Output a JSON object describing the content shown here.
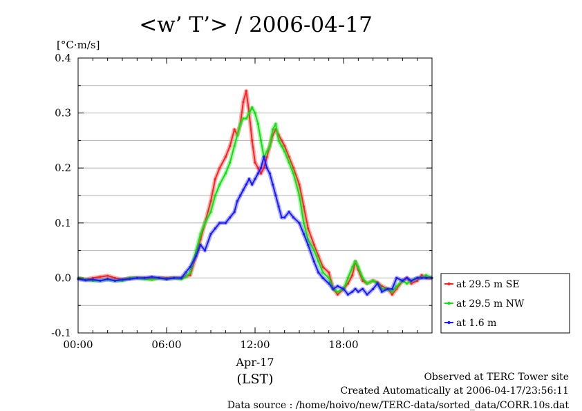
{
  "chart_data": {
    "type": "line",
    "title": "<w’ T’> / 2006-04-17",
    "ylabel": "[°C·m/s]",
    "xlabel": "(LST)",
    "date_label": "Apr-17",
    "x_unit": "hours",
    "xlim": [
      0,
      24
    ],
    "ylim": [
      -0.1,
      0.4
    ],
    "x_ticks": [
      0,
      6,
      12,
      18
    ],
    "x_tick_labels": [
      "00:00",
      "06:00",
      "12:00",
      "18:00"
    ],
    "y_ticks": [
      -0.1,
      0.0,
      0.1,
      0.2,
      0.3,
      0.4
    ],
    "y_tick_labels": [
      "-0.1",
      "0.0",
      "0.1",
      "0.2",
      "0.3",
      "0.4"
    ],
    "grid": "horizontal",
    "legend_position": "right",
    "series": [
      {
        "name": "at 29.5 m SE",
        "color": "#ff2020",
        "x": [
          0,
          0.5,
          1,
          1.5,
          2,
          2.5,
          3,
          3.5,
          4,
          4.5,
          5,
          5.5,
          6,
          6.5,
          7,
          7.3,
          7.6,
          8,
          8.3,
          8.6,
          9,
          9.3,
          9.6,
          10,
          10.3,
          10.6,
          10.8,
          11,
          11.2,
          11.4,
          11.6,
          11.8,
          12,
          12.2,
          12.4,
          12.6,
          12.8,
          13,
          13.2,
          13.4,
          13.6,
          13.8,
          14,
          14.3,
          14.6,
          15,
          15.3,
          15.6,
          16,
          16.3,
          16.6,
          17,
          17.3,
          17.6,
          18,
          18.3,
          18.6,
          18.8,
          19,
          19.3,
          19.6,
          20,
          20.3,
          20.6,
          21,
          21.3,
          21.6,
          22,
          22.3,
          22.6,
          23,
          23.3,
          23.6,
          24
        ],
        "y": [
          0.0,
          -0.003,
          0.0,
          0.002,
          0.004,
          0.0,
          -0.003,
          0.0,
          0.0,
          0.0,
          -0.002,
          0.0,
          0.0,
          0.0,
          0.0,
          0.003,
          0.005,
          0.04,
          0.07,
          0.1,
          0.14,
          0.18,
          0.2,
          0.22,
          0.24,
          0.27,
          0.26,
          0.28,
          0.32,
          0.34,
          0.3,
          0.25,
          0.21,
          0.2,
          0.19,
          0.2,
          0.22,
          0.24,
          0.26,
          0.27,
          0.26,
          0.25,
          0.24,
          0.22,
          0.2,
          0.17,
          0.13,
          0.09,
          0.06,
          0.04,
          0.02,
          0.01,
          -0.02,
          -0.03,
          -0.02,
          -0.01,
          0.005,
          0.03,
          0.015,
          -0.005,
          -0.01,
          -0.005,
          -0.008,
          -0.015,
          -0.02,
          -0.03,
          -0.02,
          -0.005,
          0.0,
          -0.01,
          -0.005,
          0.005,
          0.0,
          0.0
        ]
      },
      {
        "name": "at 29.5 m NW",
        "color": "#10e010",
        "x": [
          0,
          0.5,
          1,
          1.5,
          2,
          2.5,
          3,
          3.5,
          4,
          4.5,
          5,
          5.5,
          6,
          6.5,
          7,
          7.3,
          7.6,
          8,
          8.3,
          8.6,
          9,
          9.3,
          9.6,
          10,
          10.3,
          10.6,
          10.8,
          11,
          11.2,
          11.4,
          11.6,
          11.8,
          12,
          12.2,
          12.4,
          12.6,
          12.8,
          13,
          13.2,
          13.4,
          13.6,
          13.8,
          14,
          14.3,
          14.6,
          15,
          15.3,
          15.6,
          16,
          16.3,
          16.6,
          17,
          17.3,
          17.6,
          18,
          18.3,
          18.6,
          18.8,
          19,
          19.3,
          19.6,
          20,
          20.3,
          20.6,
          21,
          21.3,
          21.6,
          22,
          22.3,
          22.6,
          23,
          23.3,
          23.6,
          24
        ],
        "y": [
          0.0,
          -0.003,
          -0.005,
          -0.005,
          -0.003,
          -0.005,
          -0.005,
          0.0,
          0.0,
          -0.002,
          -0.003,
          0.0,
          -0.002,
          0.0,
          -0.002,
          0.002,
          0.01,
          0.05,
          0.08,
          0.1,
          0.12,
          0.15,
          0.17,
          0.19,
          0.21,
          0.24,
          0.26,
          0.28,
          0.29,
          0.29,
          0.3,
          0.31,
          0.3,
          0.28,
          0.25,
          0.22,
          0.23,
          0.24,
          0.27,
          0.28,
          0.25,
          0.24,
          0.23,
          0.21,
          0.19,
          0.15,
          0.1,
          0.07,
          0.05,
          0.03,
          0.01,
          0.0,
          -0.02,
          -0.025,
          -0.02,
          0.0,
          0.02,
          0.03,
          0.02,
          0.0,
          -0.01,
          -0.005,
          -0.01,
          -0.02,
          -0.02,
          -0.025,
          -0.015,
          -0.005,
          -0.01,
          -0.005,
          0.0,
          0.0,
          0.005,
          0.0
        ]
      },
      {
        "name": "at 1.6 m",
        "color": "#1a1aff",
        "x": [
          0,
          0.5,
          1,
          1.5,
          2,
          2.5,
          3,
          3.5,
          4,
          4.5,
          5,
          5.5,
          6,
          6.5,
          7,
          7.3,
          7.6,
          8,
          8.3,
          8.6,
          9,
          9.3,
          9.6,
          10,
          10.3,
          10.6,
          10.8,
          11,
          11.2,
          11.4,
          11.6,
          11.8,
          12,
          12.2,
          12.4,
          12.6,
          12.8,
          13,
          13.2,
          13.4,
          13.6,
          13.8,
          14,
          14.3,
          14.6,
          15,
          15.3,
          15.6,
          16,
          16.3,
          16.6,
          17,
          17.3,
          17.6,
          18,
          18.3,
          18.6,
          18.8,
          19,
          19.3,
          19.6,
          20,
          20.3,
          20.6,
          21,
          21.3,
          21.6,
          22,
          22.3,
          22.6,
          23,
          23.3,
          23.6,
          24
        ],
        "y": [
          -0.002,
          -0.004,
          -0.003,
          -0.005,
          -0.002,
          -0.005,
          -0.003,
          -0.002,
          0.0,
          0.0,
          0.002,
          0.0,
          -0.002,
          0.0,
          0.0,
          0.01,
          0.02,
          0.04,
          0.06,
          0.05,
          0.08,
          0.09,
          0.1,
          0.1,
          0.11,
          0.12,
          0.14,
          0.15,
          0.16,
          0.17,
          0.18,
          0.17,
          0.18,
          0.19,
          0.2,
          0.22,
          0.2,
          0.19,
          0.17,
          0.15,
          0.13,
          0.11,
          0.11,
          0.12,
          0.11,
          0.1,
          0.08,
          0.06,
          0.03,
          0.01,
          0.0,
          -0.01,
          -0.02,
          -0.015,
          -0.02,
          -0.03,
          -0.025,
          -0.02,
          -0.025,
          -0.02,
          -0.03,
          -0.02,
          -0.01,
          -0.025,
          -0.02,
          -0.02,
          0.0,
          -0.005,
          0.0,
          -0.005,
          0.0,
          0.0,
          0.0,
          0.0
        ]
      }
    ]
  },
  "footer": {
    "line1": "Observed at TERC Tower site",
    "line2": "Created Automatically at 2006-04-17/23:56:11",
    "line3": "Data source : /home/hoivo/new/TERC-data/sorted_data/CORR.10s.dat"
  }
}
